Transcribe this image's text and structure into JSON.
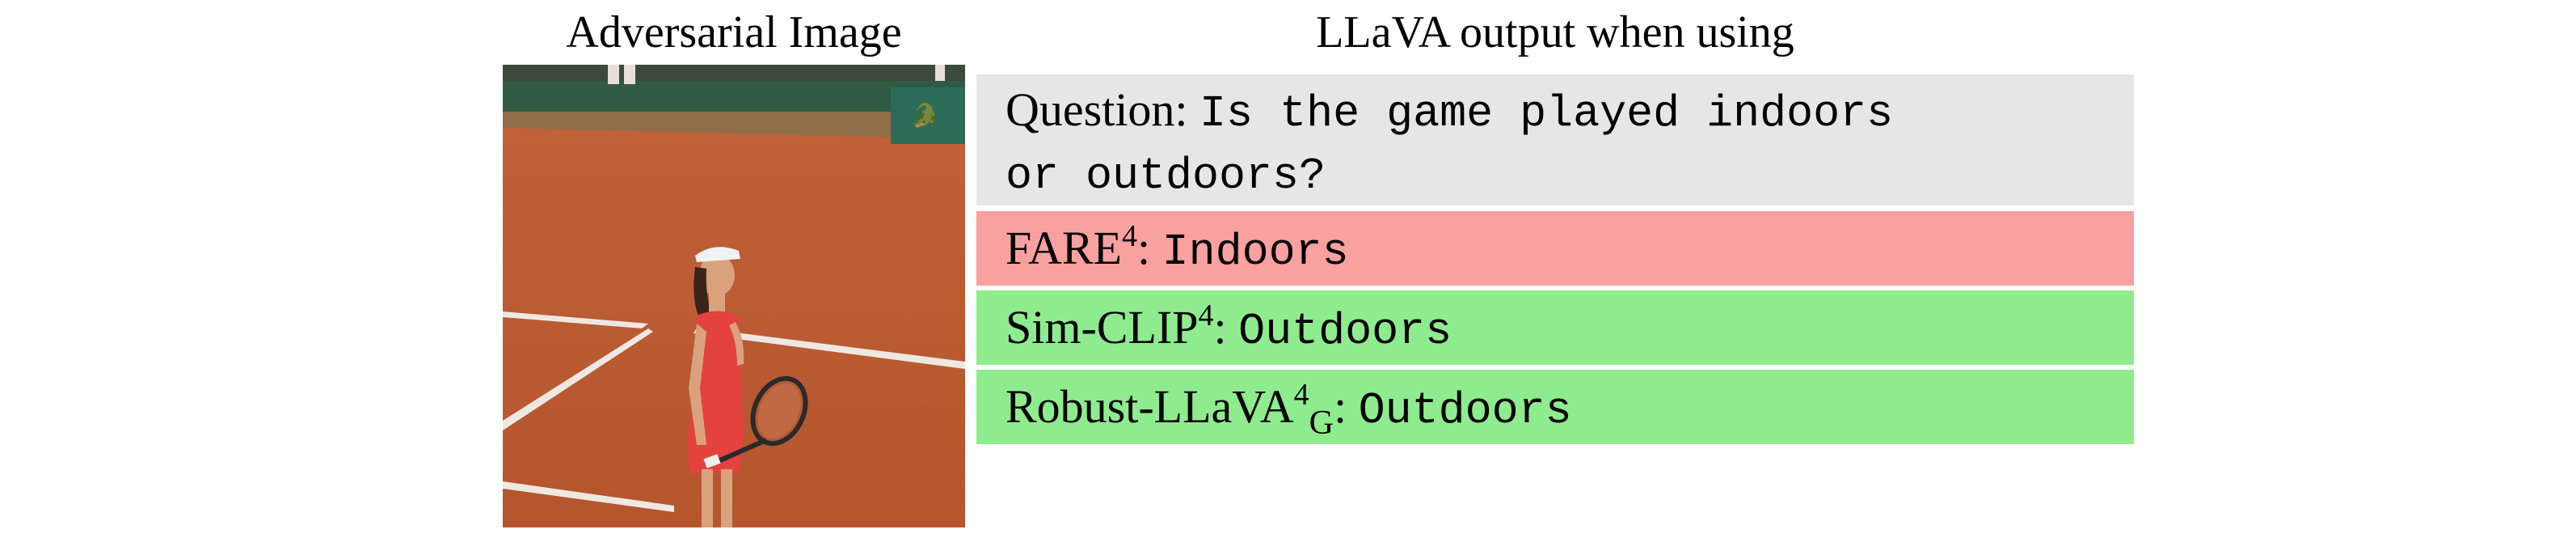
{
  "header": {
    "left_title": "Adversarial Image",
    "right_title": "LLaVA output when using"
  },
  "question": {
    "label": "Question:",
    "text_line1": "Is the game played indoors",
    "text_line2": "or outdoors?"
  },
  "answers": [
    {
      "model": "FARE",
      "superscript": "4",
      "subscript": "",
      "answer": "Indoors",
      "color": "#f9a0a0"
    },
    {
      "model": "Sim-CLIP",
      "superscript": "4",
      "subscript": "",
      "answer": "Outdoors",
      "color": "#8eec8e"
    },
    {
      "model": "Robust-LLaVA",
      "superscript": "4",
      "subscript": "G",
      "answer": "Outdoors",
      "color": "#8eec8e"
    }
  ],
  "colors": {
    "question_bg": "#e6e6e6",
    "wrong": "#f9a0a0",
    "correct": "#8eec8e"
  }
}
